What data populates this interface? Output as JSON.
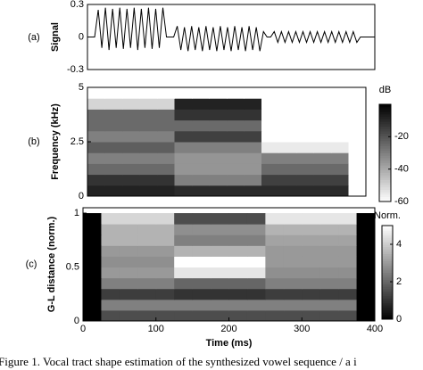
{
  "caption": "Figure 1. Vocal tract shape estimation of the synthesized vowel sequence / a i",
  "chart_data": [
    {
      "type": "line",
      "panel_label": "(a)",
      "ylabel": "Signal",
      "x": [
        0,
        5,
        10,
        15,
        20,
        25,
        30,
        35,
        40,
        45,
        50,
        55,
        60,
        65,
        70,
        75,
        80,
        85,
        90,
        95,
        100,
        105,
        110,
        115,
        120,
        125,
        130,
        135,
        140,
        145,
        150,
        155,
        160,
        165,
        170,
        175,
        180,
        185,
        190,
        195,
        200,
        205,
        210,
        215,
        220,
        225,
        230,
        235,
        240,
        245,
        250,
        255,
        260,
        265,
        270,
        275,
        280,
        285,
        290,
        295,
        300,
        305,
        310,
        315,
        320,
        325,
        330,
        335,
        340,
        345,
        350,
        355,
        360,
        365,
        370,
        375,
        380,
        385,
        390,
        395,
        400
      ],
      "series": [
        {
          "color": "#000000",
          "values": [
            0,
            0,
            0,
            0.25,
            -0.1,
            0.27,
            -0.12,
            0.26,
            -0.1,
            0.27,
            -0.11,
            0.26,
            -0.1,
            0.27,
            -0.12,
            0.26,
            -0.1,
            0.27,
            -0.11,
            0.26,
            -0.1,
            0.27,
            0,
            0,
            0,
            0.1,
            -0.12,
            0.09,
            -0.13,
            0.1,
            -0.12,
            0.09,
            -0.13,
            0.1,
            -0.12,
            0.09,
            -0.13,
            0.1,
            -0.12,
            0.09,
            -0.13,
            0.1,
            -0.12,
            0.09,
            -0.13,
            0.1,
            -0.12,
            0.09,
            -0.13,
            0.05,
            0,
            0,
            0.05,
            -0.05,
            0.05,
            -0.05,
            0.05,
            -0.05,
            0.05,
            -0.05,
            0.05,
            -0.05,
            0.05,
            -0.05,
            0.05,
            -0.05,
            0.05,
            -0.05,
            0.05,
            -0.05,
            0.05,
            -0.05,
            0.05,
            -0.05,
            0.05,
            -0.05,
            0,
            0,
            0,
            0,
            0
          ]
        }
      ],
      "xlim": [
        0,
        400
      ],
      "ylim": [
        -0.3,
        0.3
      ],
      "yticks": [
        -0.3,
        0,
        0.3
      ]
    },
    {
      "type": "heatmap",
      "panel_label": "(b)",
      "ylabel": "Frequency (kHz)",
      "colorbar_label": "dB",
      "colormap": "gray_r",
      "x": [
        12.5,
        37.5,
        62.5,
        87.5,
        112.5,
        137.5,
        162.5,
        187.5,
        212.5,
        237.5,
        262.5,
        287.5,
        312.5,
        337.5,
        362.5,
        387.5
      ],
      "y": [
        0.25,
        0.75,
        1.25,
        1.75,
        2.25,
        2.75,
        3.25,
        3.75,
        4.25,
        4.75
      ],
      "z": [
        [
          -8,
          -8,
          -8,
          -8,
          -8,
          -10,
          -10,
          -10,
          -10,
          -10,
          -10,
          -10,
          -10,
          -10,
          -10,
          -60
        ],
        [
          -12,
          -12,
          -12,
          -12,
          -12,
          -30,
          -30,
          -30,
          -30,
          -30,
          -15,
          -15,
          -15,
          -15,
          -15,
          -60
        ],
        [
          -25,
          -25,
          -25,
          -25,
          -25,
          -35,
          -35,
          -35,
          -35,
          -35,
          -25,
          -25,
          -25,
          -25,
          -25,
          -60
        ],
        [
          -30,
          -30,
          -30,
          -30,
          -30,
          -35,
          -35,
          -35,
          -35,
          -35,
          -30,
          -30,
          -30,
          -30,
          -30,
          -60
        ],
        [
          -22,
          -22,
          -22,
          -22,
          -22,
          -30,
          -30,
          -30,
          -30,
          -30,
          -55,
          -55,
          -55,
          -55,
          -55,
          -60
        ],
        [
          -30,
          -30,
          -30,
          -30,
          -30,
          -15,
          -15,
          -15,
          -15,
          -15,
          -60,
          -60,
          -60,
          -60,
          -60,
          -60
        ],
        [
          -25,
          -25,
          -25,
          -25,
          -25,
          -25,
          -25,
          -25,
          -25,
          -25,
          -60,
          -60,
          -60,
          -60,
          -60,
          -60
        ],
        [
          -25,
          -25,
          -25,
          -25,
          -25,
          -12,
          -12,
          -12,
          -12,
          -12,
          -60,
          -60,
          -60,
          -60,
          -60,
          -60
        ],
        [
          -50,
          -50,
          -50,
          -50,
          -50,
          -8,
          -8,
          -8,
          -8,
          -8,
          -60,
          -60,
          -60,
          -60,
          -60,
          -60
        ],
        [
          -60,
          -60,
          -60,
          -60,
          -60,
          -60,
          -60,
          -60,
          -60,
          -60,
          -60,
          -60,
          -60,
          -60,
          -60,
          -60
        ]
      ],
      "xlim": [
        0,
        400
      ],
      "ylim": [
        0,
        5
      ],
      "yticks": [
        0,
        2.5,
        5
      ],
      "zlim": [
        -60,
        0
      ],
      "zticks": [
        -60,
        -40,
        -20
      ]
    },
    {
      "type": "heatmap",
      "panel_label": "(c)",
      "ylabel": "G-L distance (norm.)",
      "xlabel": "Time (ms)",
      "colorbar_label": "Norm.",
      "colormap": "gray",
      "x": [
        12.5,
        37.5,
        62.5,
        87.5,
        112.5,
        137.5,
        162.5,
        187.5,
        212.5,
        237.5,
        262.5,
        287.5,
        312.5,
        337.5,
        362.5,
        387.5
      ],
      "y": [
        0.05,
        0.15,
        0.25,
        0.35,
        0.45,
        0.55,
        0.65,
        0.75,
        0.85,
        0.95
      ],
      "z": [
        [
          0,
          1.5,
          1.5,
          1.5,
          1.5,
          1.5,
          1.5,
          1.5,
          1.5,
          1.5,
          1.5,
          1.5,
          1.5,
          1.5,
          1.5,
          0
        ],
        [
          0,
          2.5,
          2.5,
          2.5,
          2.5,
          2.5,
          2.5,
          2.5,
          2.5,
          2.5,
          2.5,
          2.5,
          2.5,
          2.5,
          2.5,
          0
        ],
        [
          0,
          1.2,
          1.2,
          1.2,
          1.2,
          1,
          1,
          1,
          1,
          1,
          1.2,
          1.2,
          1.2,
          1.2,
          1.2,
          0
        ],
        [
          0,
          2.5,
          2.5,
          2.5,
          2.5,
          2,
          2,
          2,
          2,
          2,
          2.5,
          2.5,
          2.5,
          2.5,
          2.5,
          0
        ],
        [
          0,
          3,
          3,
          3,
          3,
          4.5,
          4.5,
          4.5,
          4.5,
          4.5,
          2.8,
          2.8,
          2.8,
          2.8,
          2.8,
          0
        ],
        [
          0,
          2.8,
          2.8,
          2.8,
          2.8,
          5,
          5,
          5,
          5,
          5,
          3,
          3,
          3,
          3,
          3,
          0
        ],
        [
          0,
          3,
          3,
          3,
          3,
          3.5,
          3.5,
          3.5,
          3.5,
          3.5,
          3,
          3,
          3,
          3,
          3,
          0
        ],
        [
          0,
          3.5,
          3.5,
          3.5,
          3.5,
          2.5,
          2.5,
          2.5,
          2.5,
          2.5,
          3.2,
          3.2,
          3.2,
          3.2,
          3.2,
          0
        ],
        [
          0,
          3.5,
          3.5,
          3.5,
          3.5,
          2.8,
          2.8,
          2.8,
          2.8,
          2.8,
          3.5,
          3.5,
          3.5,
          3.5,
          3.5,
          0
        ],
        [
          0,
          4.2,
          4.2,
          4.2,
          4.2,
          1.5,
          1.5,
          1.5,
          1.5,
          1.5,
          4.5,
          4.5,
          4.5,
          4.5,
          4.5,
          0
        ]
      ],
      "xlim": [
        0,
        400
      ],
      "ylim": [
        0,
        1.05
      ],
      "yticks": [
        0,
        0.5,
        1
      ],
      "xticks": [
        0,
        100,
        200,
        300,
        400
      ],
      "zlim": [
        0,
        5
      ],
      "zticks": [
        0,
        2,
        4
      ]
    }
  ]
}
